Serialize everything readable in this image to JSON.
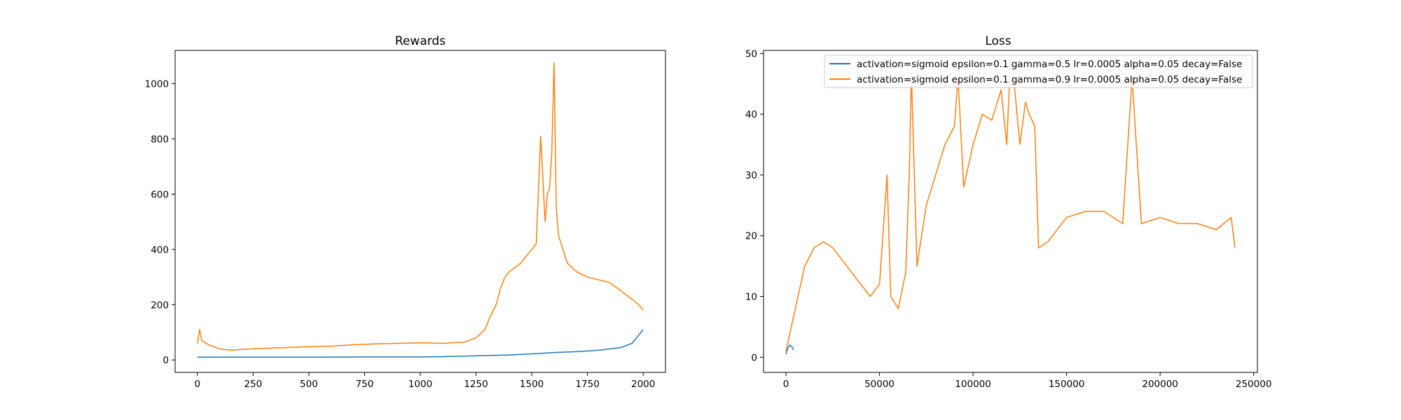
{
  "chart_data": [
    {
      "type": "line",
      "title": "Rewards",
      "xlabel": "",
      "ylabel": "",
      "xlim": [
        -100,
        2100
      ],
      "ylim": [
        -45,
        1120
      ],
      "xticks": [
        0,
        250,
        500,
        750,
        1000,
        1250,
        1500,
        1750,
        2000
      ],
      "yticks": [
        0,
        200,
        400,
        600,
        800,
        1000
      ],
      "xtick_labels": [
        "0",
        "250",
        "500",
        "750",
        "1000",
        "1250",
        "1500",
        "1750",
        "2000"
      ],
      "ytick_labels": [
        "0",
        "200",
        "400",
        "600",
        "800",
        "1000"
      ],
      "grid": false,
      "legend": null,
      "series": [
        {
          "color": "#1f77b4",
          "x": [
            0,
            250,
            500,
            750,
            1000,
            1100,
            1200,
            1300,
            1400,
            1500,
            1600,
            1700,
            1800,
            1850,
            1900,
            1950,
            1980,
            2000
          ],
          "y": [
            10,
            10,
            10,
            11,
            11,
            12,
            14,
            16,
            18,
            22,
            27,
            30,
            35,
            40,
            45,
            60,
            90,
            110
          ]
        },
        {
          "color": "#ff7f0e",
          "x": [
            0,
            10,
            20,
            50,
            100,
            150,
            200,
            250,
            300,
            400,
            500,
            600,
            700,
            800,
            900,
            1000,
            1100,
            1200,
            1250,
            1290,
            1310,
            1340,
            1360,
            1380,
            1400,
            1450,
            1480,
            1500,
            1520,
            1540,
            1560,
            1570,
            1580,
            1590,
            1600,
            1610,
            1620,
            1640,
            1660,
            1700,
            1750,
            1800,
            1850,
            1900,
            1950,
            1980,
            2000
          ],
          "y": [
            60,
            110,
            70,
            55,
            40,
            35,
            38,
            40,
            42,
            45,
            48,
            50,
            55,
            58,
            60,
            62,
            60,
            65,
            80,
            110,
            150,
            200,
            260,
            300,
            320,
            350,
            380,
            400,
            420,
            810,
            500,
            600,
            620,
            750,
            1075,
            550,
            450,
            400,
            350,
            320,
            300,
            290,
            280,
            250,
            220,
            200,
            180
          ]
        }
      ]
    },
    {
      "type": "line",
      "title": "Loss",
      "xlabel": "",
      "ylabel": "",
      "xlim": [
        -12000,
        252000
      ],
      "ylim": [
        -2.5,
        50.5
      ],
      "xticks": [
        0,
        50000,
        100000,
        150000,
        200000,
        250000
      ],
      "yticks": [
        0,
        10,
        20,
        30,
        40,
        50
      ],
      "xtick_labels": [
        "0",
        "50000",
        "100000",
        "150000",
        "200000",
        "250000"
      ],
      "ytick_labels": [
        "0",
        "10",
        "20",
        "30",
        "40",
        "50"
      ],
      "grid": false,
      "legend": "top-right",
      "legend_entries": [
        "activation=sigmoid epsilon=0.1 gamma=0.5 lr=0.0005 alpha=0.05 decay=False",
        "activation=sigmoid epsilon=0.1 gamma=0.9 lr=0.0005 alpha=0.05 decay=False"
      ],
      "series": [
        {
          "color": "#1f77b4",
          "x": [
            0,
            1000,
            2000,
            3000,
            4000
          ],
          "y": [
            0.5,
            1.5,
            2,
            1.8,
            1.2
          ]
        },
        {
          "color": "#ff7f0e",
          "x": [
            0,
            5000,
            10000,
            15000,
            20000,
            25000,
            30000,
            35000,
            40000,
            45000,
            50000,
            54000,
            56000,
            60000,
            64000,
            66000,
            67000,
            70000,
            75000,
            80000,
            85000,
            90000,
            92000,
            95000,
            100000,
            105000,
            110000,
            115000,
            118000,
            120000,
            122000,
            125000,
            128000,
            130000,
            133000,
            135000,
            140000,
            150000,
            160000,
            170000,
            180000,
            185000,
            190000,
            200000,
            210000,
            220000,
            230000,
            238000,
            240000
          ],
          "y": [
            1,
            8,
            15,
            18,
            19,
            18,
            16,
            14,
            12,
            10,
            12,
            30,
            10,
            8,
            14,
            31,
            47,
            15,
            25,
            30,
            35,
            38,
            46,
            28,
            35,
            40,
            39,
            44,
            35,
            49,
            45,
            35,
            42,
            40,
            38,
            18,
            19,
            23,
            24,
            24,
            22,
            46,
            22,
            23,
            22,
            22,
            21,
            23,
            18
          ]
        }
      ]
    }
  ]
}
